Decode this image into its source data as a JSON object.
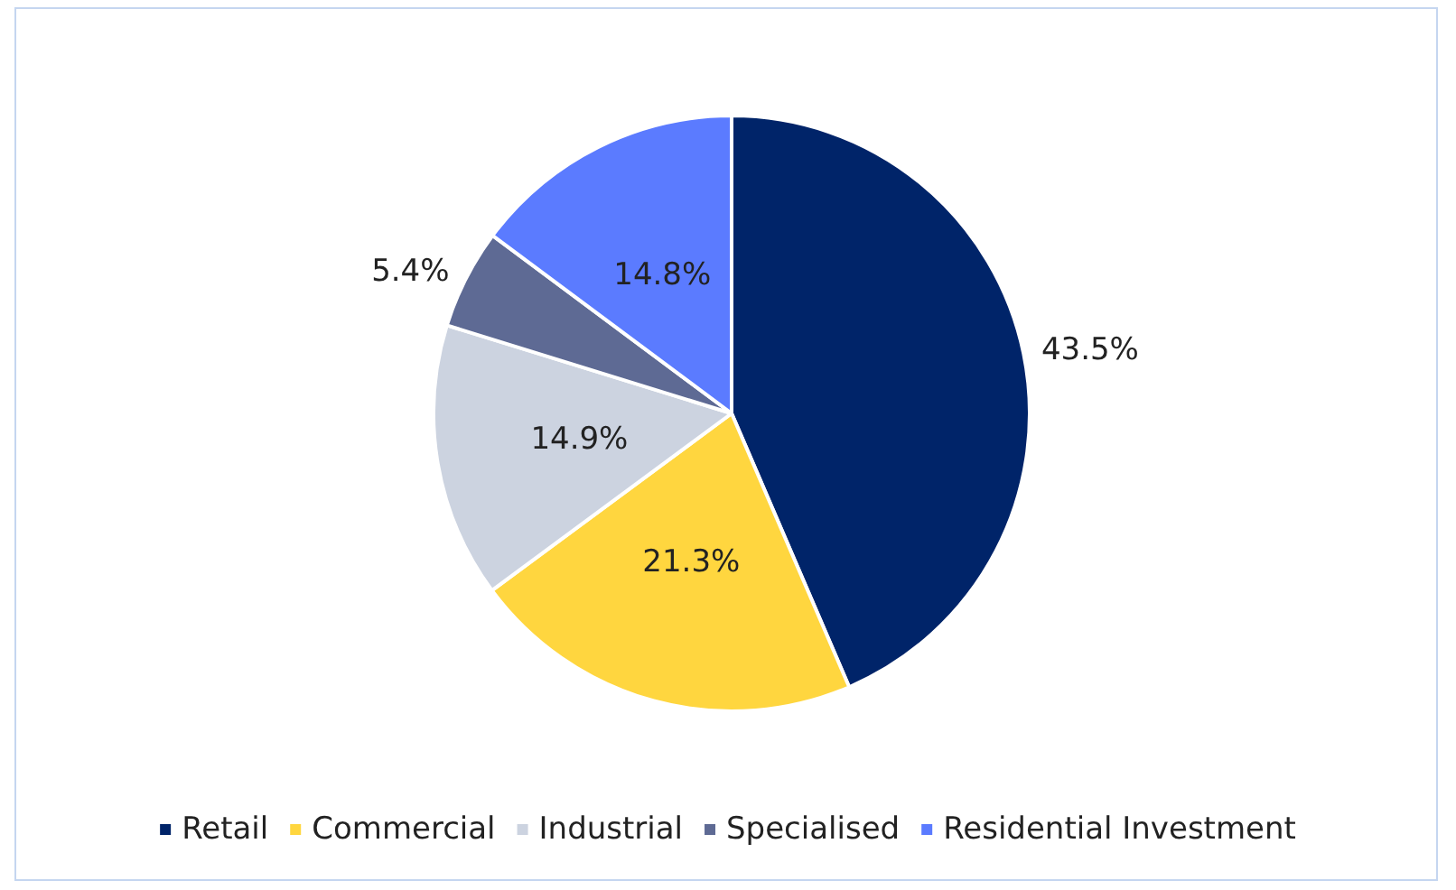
{
  "chart_data": {
    "type": "pie",
    "categories": [
      "Retail",
      "Commercial",
      "Industrial",
      "Specialised",
      "Residential Investment"
    ],
    "values": [
      43.5,
      21.3,
      14.9,
      5.4,
      14.8
    ],
    "colors": [
      "#002469",
      "#ffd63f",
      "#ccd3e0",
      "#5e6a94",
      "#5b7bff"
    ],
    "value_labels": [
      "43.5%",
      "21.3%",
      "14.9%",
      "5.4%",
      "14.8%"
    ],
    "legend": "bottom"
  }
}
